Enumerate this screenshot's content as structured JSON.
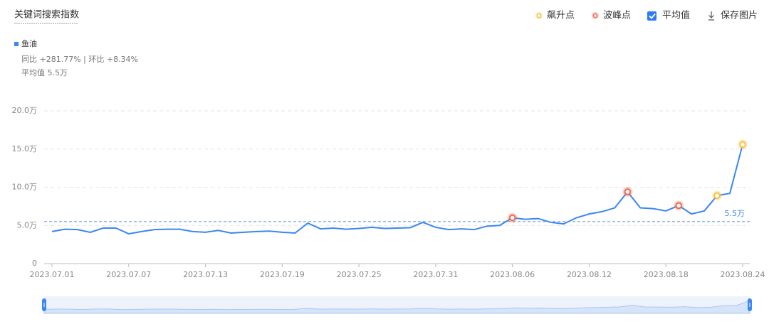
{
  "header": {
    "title": "关键词搜索指数",
    "legend": {
      "surge": "飙升点",
      "peak": "波峰点",
      "average": "平均值",
      "save": "保存图片"
    }
  },
  "chart_data": {
    "type": "line",
    "series": [
      {
        "name": "鱼油",
        "color": "#3a86f5",
        "values": [
          4.2,
          4.5,
          4.45,
          4.1,
          4.65,
          4.65,
          3.9,
          4.2,
          4.45,
          4.5,
          4.5,
          4.2,
          4.1,
          4.35,
          4.0,
          4.1,
          4.2,
          4.25,
          4.1,
          4.0,
          5.3,
          4.55,
          4.65,
          4.5,
          4.6,
          4.75,
          4.6,
          4.65,
          4.7,
          5.4,
          4.75,
          4.45,
          4.55,
          4.45,
          4.9,
          5.0,
          6.0,
          5.8,
          5.9,
          5.4,
          5.2,
          6.0,
          6.5,
          6.8,
          7.3,
          9.4,
          7.3,
          7.2,
          6.9,
          7.6,
          6.5,
          6.9,
          8.9,
          9.2,
          15.6
        ]
      }
    ],
    "stats": "同比 +281.77% | 环比 +8.34%",
    "average_summary": "平均值 5.5万",
    "average": {
      "value": 5.5,
      "label": "5.5万"
    },
    "categories": [
      "2023.07.01",
      null,
      null,
      null,
      null,
      null,
      "2023.07.07",
      null,
      null,
      null,
      null,
      null,
      "2023.07.13",
      null,
      null,
      null,
      null,
      null,
      "2023.07.19",
      null,
      null,
      null,
      null,
      null,
      "2023.07.25",
      null,
      null,
      null,
      null,
      null,
      "2023.07.31",
      null,
      null,
      null,
      null,
      null,
      "2023.08.06",
      null,
      null,
      null,
      null,
      null,
      "2023.08.12",
      null,
      null,
      null,
      null,
      null,
      "2023.08.18",
      null,
      null,
      null,
      null,
      null,
      "2023.08.24"
    ],
    "ylim": [
      0,
      20
    ],
    "yticks": [
      0,
      {
        "value": 5,
        "label": "5.0万"
      },
      {
        "value": 10,
        "label": "10.0万"
      },
      {
        "value": 15,
        "label": "15.0万"
      },
      {
        "value": 20,
        "label": "20.0万"
      }
    ],
    "grid": true,
    "surge_points": [
      52,
      54
    ],
    "peak_points": [
      36,
      45,
      49
    ],
    "surge_color": "#f7c244",
    "peak_color": "#f06a4f"
  }
}
